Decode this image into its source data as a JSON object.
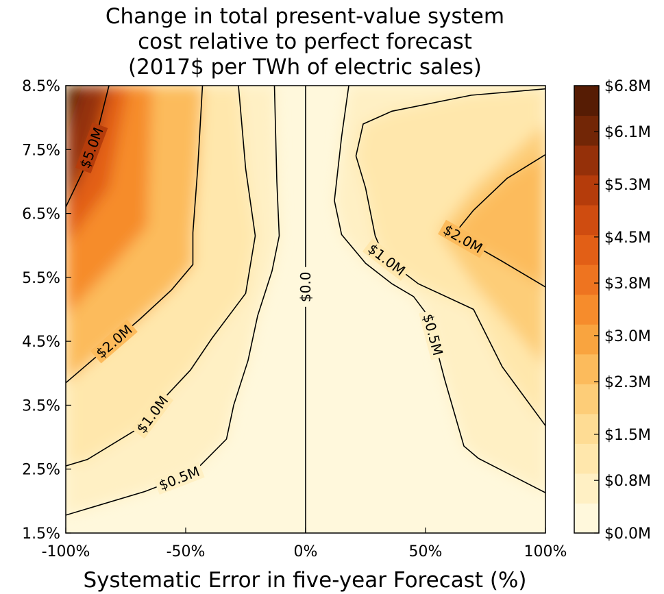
{
  "chart_data": {
    "type": "heatmap",
    "title_lines": [
      "Change in total present-value system",
      "cost relative to perfect forecast",
      "(2017$ per TWh of electric sales)"
    ],
    "xlabel": "Systematic Error in five-year Forecast (%)",
    "ylabel": "",
    "xlim": [
      -100,
      100
    ],
    "ylim": [
      1.5,
      8.5
    ],
    "x_ticks": [
      -100,
      -50,
      0,
      50,
      100
    ],
    "x_tick_labels": [
      "-100%",
      "-50%",
      "0%",
      "50%",
      "100%"
    ],
    "y_ticks": [
      1.5,
      2.5,
      3.5,
      4.5,
      5.5,
      6.5,
      7.5,
      8.5
    ],
    "y_tick_labels": [
      "1.5%",
      "2.5%",
      "3.5%",
      "4.5%",
      "5.5%",
      "6.5%",
      "7.5%",
      "8.5%"
    ],
    "colorbar": {
      "range": [
        0,
        6.8
      ],
      "tick_values": [
        0.0,
        0.8,
        1.5,
        2.3,
        3.0,
        3.8,
        4.5,
        5.3,
        6.1,
        6.8
      ],
      "tick_labels": [
        "$0.0M",
        "$0.8M",
        "$1.5M",
        "$2.3M",
        "$3.0M",
        "$3.8M",
        "$4.5M",
        "$5.3M",
        "$6.1M",
        "$6.8M"
      ],
      "colors": [
        "#fff8dc",
        "#fff0c4",
        "#ffe7ac",
        "#fedc94",
        "#fdcd78",
        "#fcbb5c",
        "#f9a43f",
        "#f68c2c",
        "#ee7420",
        "#e25f16",
        "#cf4c10",
        "#b53c0b",
        "#953009",
        "#722606",
        "#561c04"
      ]
    },
    "contour_levels": [
      {
        "value": 0.0,
        "label": "$0.0",
        "points": [
          [
            0,
            1.5
          ],
          [
            0,
            8.5
          ]
        ]
      },
      {
        "value": 0.5,
        "label": "$0.5M",
        "points": [
          [
            -100,
            1.78
          ],
          [
            -67,
            2.15
          ],
          [
            -47,
            2.44
          ],
          [
            -33,
            2.97
          ],
          [
            -30,
            3.5
          ],
          [
            -24,
            4.2
          ],
          [
            -20,
            4.9
          ],
          [
            -14,
            5.6
          ],
          [
            -11,
            6.15
          ],
          [
            -12,
            7.0
          ],
          [
            -13,
            8.5
          ]
        ]
      },
      {
        "value": 0.5,
        "label": "$0.5M",
        "points": [
          [
            100,
            2.13
          ],
          [
            72,
            2.67
          ],
          [
            66,
            2.86
          ],
          [
            58,
            3.9
          ],
          [
            51,
            4.9
          ],
          [
            45,
            5.2
          ],
          [
            36,
            5.4
          ],
          [
            25,
            5.72
          ],
          [
            15,
            6.17
          ],
          [
            12,
            6.7
          ],
          [
            15,
            7.7
          ],
          [
            18,
            8.5
          ]
        ]
      },
      {
        "value": 1.0,
        "label": "$1.0M",
        "points": [
          [
            -100,
            2.55
          ],
          [
            -91,
            2.65
          ],
          [
            -67,
            3.2
          ],
          [
            -58,
            3.65
          ],
          [
            -48,
            4.05
          ],
          [
            -39,
            4.55
          ],
          [
            -31,
            4.95
          ],
          [
            -25,
            5.25
          ],
          [
            -21,
            6.15
          ],
          [
            -25,
            7.2
          ],
          [
            -28,
            8.5
          ]
        ]
      },
      {
        "value": 1.0,
        "label": "$1.0M",
        "points": [
          [
            100,
            3.18
          ],
          [
            82,
            4.1
          ],
          [
            70,
            5.0
          ],
          [
            47,
            5.4
          ],
          [
            33,
            5.8
          ],
          [
            29,
            6.15
          ],
          [
            25,
            6.9
          ],
          [
            21,
            7.4
          ],
          [
            24,
            7.9
          ],
          [
            36,
            8.1
          ],
          [
            69,
            8.35
          ],
          [
            100,
            8.45
          ]
        ]
      },
      {
        "value": 2.0,
        "label": "$2.0M",
        "points": [
          [
            -100,
            3.85
          ],
          [
            -86,
            4.3
          ],
          [
            -69,
            4.85
          ],
          [
            -56,
            5.3
          ],
          [
            -47,
            5.7
          ],
          [
            -47,
            6.2
          ],
          [
            -45,
            7.2
          ],
          [
            -43,
            8.5
          ]
        ]
      },
      {
        "value": 2.0,
        "label": "$2.0M",
        "points": [
          [
            100,
            5.35
          ],
          [
            82,
            5.75
          ],
          [
            62,
            6.18
          ],
          [
            70,
            6.55
          ],
          [
            84,
            7.05
          ],
          [
            100,
            7.42
          ]
        ]
      },
      {
        "value": 5.0,
        "label": "$5.0M",
        "points": [
          [
            -100,
            6.6
          ],
          [
            -93,
            7.15
          ],
          [
            -87,
            7.75
          ],
          [
            -82,
            8.5
          ]
        ]
      }
    ]
  }
}
